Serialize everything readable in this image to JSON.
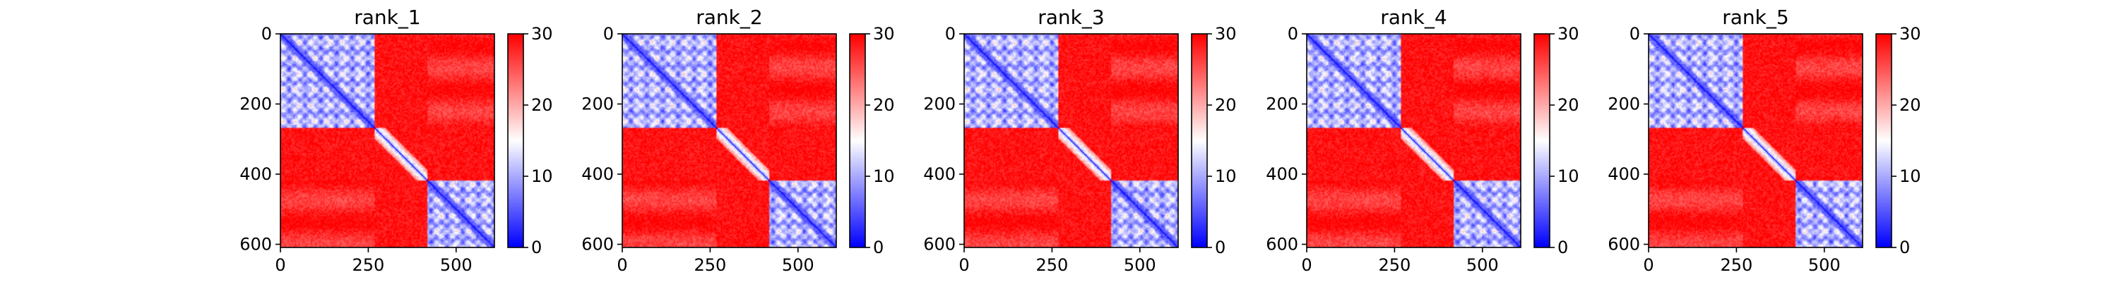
{
  "chart_data": {
    "type": "heatmap",
    "description_colormap": "bwr",
    "colormap": {
      "low": "#0000ff",
      "mid": "#ffffff",
      "high": "#ff0000"
    },
    "grid": false,
    "panels": [
      {
        "title": "rank_1"
      },
      {
        "title": "rank_2"
      },
      {
        "title": "rank_3"
      },
      {
        "title": "rank_4"
      },
      {
        "title": "rank_5"
      }
    ],
    "x_ticks": [
      0,
      250,
      500
    ],
    "y_ticks": [
      0,
      200,
      400,
      600
    ],
    "xlim": [
      0,
      609
    ],
    "ylim": [
      609,
      0
    ],
    "colorbar": {
      "ticks": [
        0,
        10,
        20,
        30
      ],
      "range": [
        0,
        30
      ]
    },
    "structure": {
      "n": 609,
      "domain_a": [
        0,
        265
      ],
      "linker": [
        265,
        415
      ],
      "domain_b": [
        415,
        609
      ],
      "in_domain_value": 8,
      "cross_domain_value": 28,
      "linker_value": 29,
      "diagonal_value": 0
    }
  }
}
